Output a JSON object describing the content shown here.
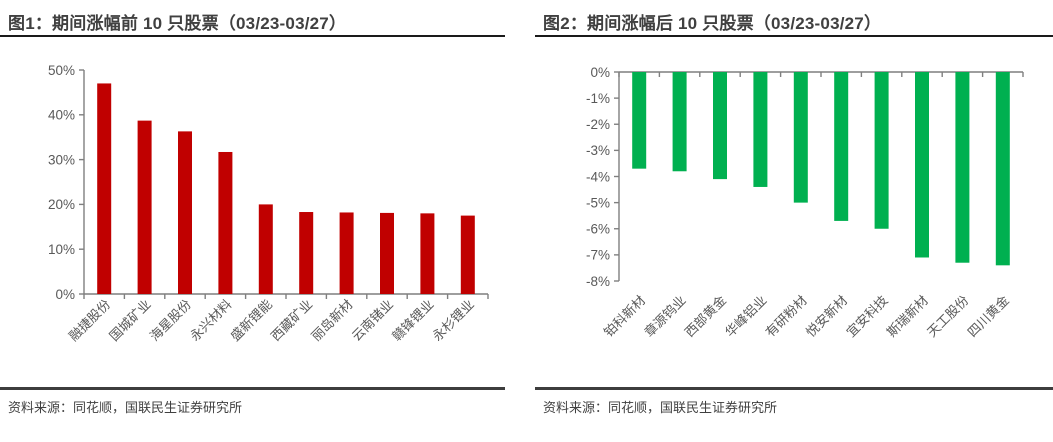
{
  "figure1": {
    "title": "图1：期间涨幅前 10 只股票（03/23-03/27）",
    "source": "资料来源：同花顺，国联民生证券研究所"
  },
  "figure2": {
    "title": "图2：期间涨幅后 10 只股票（03/23-03/27）",
    "source": "资料来源：同花顺，国联民生证券研究所"
  },
  "colors": {
    "title_text": "#404040",
    "source_text": "#404040",
    "title_rule": "#1a1a1a",
    "footer_rule": "#3d3d3d",
    "axis_line": "#7f7f7f",
    "tick_label": "#595959",
    "bar_red": "#c00000",
    "bar_green": "#00b050",
    "background": "#ffffff"
  },
  "chart_data": [
    {
      "type": "bar",
      "title": "图1：期间涨幅前 10 只股票（03/23-03/27）",
      "categories": [
        "融捷股份",
        "国城矿业",
        "海星股份",
        "永兴材料",
        "盛新锂能",
        "西藏矿业",
        "丽岛新材",
        "云南锗业",
        "赣锋锂业",
        "永杉锂业"
      ],
      "values": [
        47.0,
        38.7,
        36.3,
        31.7,
        20.0,
        18.3,
        18.2,
        18.1,
        18.0,
        17.5
      ],
      "unit": "%",
      "bar_color": "#c00000",
      "ylim": [
        0,
        50
      ],
      "ytick_step": 10,
      "ytick_labels": [
        "0%",
        "10%",
        "20%",
        "30%",
        "40%",
        "50%"
      ],
      "grid": false,
      "legend": null,
      "xlabel": "",
      "ylabel": ""
    },
    {
      "type": "bar",
      "title": "图2：期间涨幅后 10 只股票（03/23-03/27）",
      "categories": [
        "铂科新材",
        "章源钨业",
        "西部黄金",
        "华峰铝业",
        "有研粉材",
        "悦安新材",
        "宜安科技",
        "斯瑞新材",
        "天工股份",
        "四川黄金"
      ],
      "values": [
        -3.7,
        -3.8,
        -4.1,
        -4.4,
        -5.0,
        -5.7,
        -6.0,
        -7.1,
        -7.3,
        -7.4
      ],
      "unit": "%",
      "bar_color": "#00b050",
      "ylim": [
        -8,
        0
      ],
      "ytick_step": 1,
      "ytick_labels": [
        "0%",
        "-1%",
        "-2%",
        "-3%",
        "-4%",
        "-5%",
        "-6%",
        "-7%",
        "-8%"
      ],
      "grid": false,
      "legend": null,
      "xlabel": "",
      "ylabel": ""
    }
  ]
}
